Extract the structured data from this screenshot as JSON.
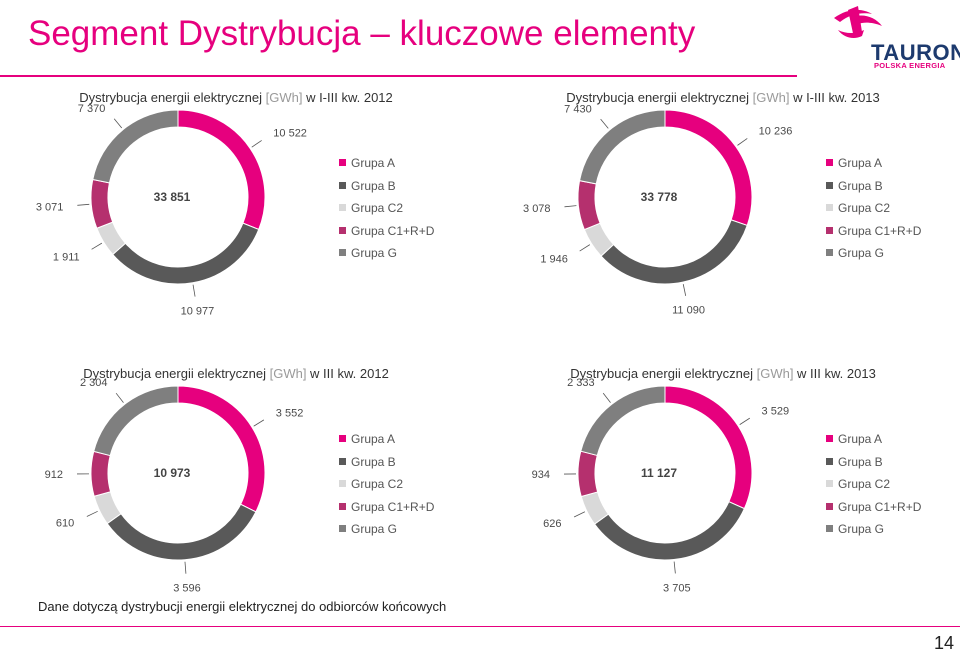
{
  "header": {
    "title": "Segment Dystrybucja – kluczowe elementy"
  },
  "logo": {
    "word": "TAURON",
    "sub": "POLSKA ENERGIA"
  },
  "colors": {
    "accent": "#e6007e",
    "Grupa A": "#e6007e",
    "Grupa B": "#595959",
    "Grupa C2": "#d9d9d9",
    "Grupa C1+R+D": "#b5306e",
    "Grupa G": "#7f7f7f"
  },
  "footnote": "Dane dotyczą dystrybucji energii elektrycznej do odbiorców końcowych",
  "page_number": "14",
  "chart_data": [
    {
      "type": "pie",
      "title": "Dystrybucja energii elektrycznej [GWh] w I-III kw. 2012",
      "title_parts": {
        "pre": "Dystrybucja energii elektrycznej ",
        "unit": "[GWh]",
        "post": " w I-III kw. 2012"
      },
      "total": "33 851",
      "legend": [
        "Grupa A",
        "Grupa B",
        "Grupa C2",
        "Grupa C1+R+D",
        "Grupa G"
      ],
      "slices": [
        {
          "name": "Grupa A",
          "value": 10522,
          "label": "10 522"
        },
        {
          "name": "Grupa B",
          "value": 10977,
          "label": "10 977"
        },
        {
          "name": "Grupa C2",
          "value": 1911,
          "label": "1 911"
        },
        {
          "name": "Grupa C1+R+D",
          "value": 3071,
          "label": "3 071"
        },
        {
          "name": "Grupa G",
          "value": 7370,
          "label": "7 370"
        }
      ]
    },
    {
      "type": "pie",
      "title": "Dystrybucja energii elektrycznej [GWh] w I-III kw. 2013",
      "title_parts": {
        "pre": "Dystrybucja energii elektrycznej ",
        "unit": "[GWh]",
        "post": " w I-III kw. 2013"
      },
      "total": "33 778",
      "legend": [
        "Grupa A",
        "Grupa B",
        "Grupa C2",
        "Grupa C1+R+D",
        "Grupa G"
      ],
      "slices": [
        {
          "name": "Grupa A",
          "value": 10236,
          "label": "10 236"
        },
        {
          "name": "Grupa B",
          "value": 11090,
          "label": "11 090"
        },
        {
          "name": "Grupa C2",
          "value": 1946,
          "label": "1 946"
        },
        {
          "name": "Grupa C1+R+D",
          "value": 3078,
          "label": "3 078"
        },
        {
          "name": "Grupa G",
          "value": 7430,
          "label": "7 430"
        }
      ]
    },
    {
      "type": "pie",
      "title": "Dystrybucja energii elektrycznej [GWh] w III kw. 2012",
      "title_parts": {
        "pre": "Dystrybucja energii elektrycznej ",
        "unit": "[GWh]",
        "post": " w III kw. 2012"
      },
      "total": "10 973",
      "legend": [
        "Grupa A",
        "Grupa B",
        "Grupa C2",
        "Grupa C1+R+D",
        "Grupa G"
      ],
      "slices": [
        {
          "name": "Grupa A",
          "value": 3552,
          "label": "3 552"
        },
        {
          "name": "Grupa B",
          "value": 3596,
          "label": "3 596"
        },
        {
          "name": "Grupa C2",
          "value": 610,
          "label": "610"
        },
        {
          "name": "Grupa C1+R+D",
          "value": 912,
          "label": "912"
        },
        {
          "name": "Grupa G",
          "value": 2304,
          "label": "2 304"
        }
      ]
    },
    {
      "type": "pie",
      "title": "Dystrybucja energii elektrycznej [GWh] w III kw. 2013",
      "title_parts": {
        "pre": "Dystrybucja energii elektrycznej ",
        "unit": "[GWh]",
        "post": " w III kw. 2013"
      },
      "total": "11 127",
      "legend": [
        "Grupa A",
        "Grupa B",
        "Grupa C2",
        "Grupa C1+R+D",
        "Grupa G"
      ],
      "slices": [
        {
          "name": "Grupa A",
          "value": 3529,
          "label": "3 529"
        },
        {
          "name": "Grupa B",
          "value": 3705,
          "label": "3 705"
        },
        {
          "name": "Grupa C2",
          "value": 626,
          "label": "626"
        },
        {
          "name": "Grupa C1+R+D",
          "value": 934,
          "label": "934"
        },
        {
          "name": "Grupa G",
          "value": 2333,
          "label": "2 333"
        }
      ]
    }
  ]
}
